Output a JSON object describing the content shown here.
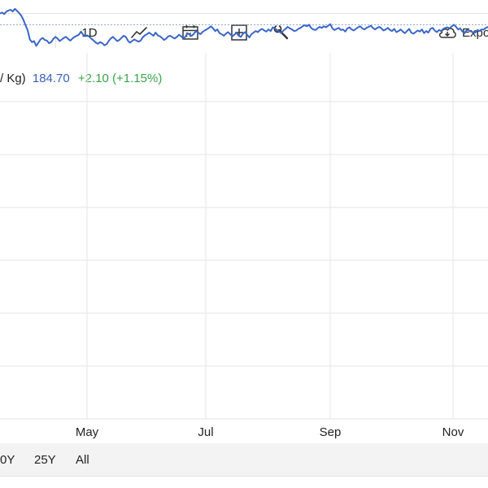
{
  "toolbar": {
    "period_label": "1D",
    "line_icon": "line-chart-icon",
    "calendar_icon": "calendar-icon",
    "plus_icon": "plus-box-icon",
    "wrench_icon": "wrench-icon",
    "export_icon": "cloud-download-icon",
    "export_label": "Expo"
  },
  "quote": {
    "unit": "/ Kg)",
    "price": "184.70",
    "change": "+2.10 (+1.15%)"
  },
  "ranges": [
    "0Y",
    "25Y",
    "All"
  ],
  "colors": {
    "line": "#3a66c6",
    "price": "#3a5fb8",
    "change": "#3aa34a",
    "reference": "#8fa3c4",
    "grid": "#e6e6e6"
  },
  "chart_data": {
    "type": "line",
    "x_tick_labels": [
      "May",
      "Jul",
      "Sep",
      "Nov"
    ],
    "ylim": [
      0,
      100
    ],
    "reference_level": 61,
    "series": [
      {
        "values": [
          82,
          84,
          81,
          86,
          88,
          89,
          86,
          91,
          87,
          83,
          78,
          70,
          60,
          50,
          33,
          28,
          30,
          21,
          27,
          33,
          36,
          32,
          31,
          26,
          28,
          34,
          38,
          35,
          30,
          33,
          36,
          38,
          34,
          31,
          35,
          38,
          40,
          42,
          48,
          42,
          39,
          41,
          38,
          34,
          31,
          27,
          25,
          28,
          26,
          22,
          24,
          30,
          35,
          38,
          34,
          30,
          32,
          36,
          40,
          38,
          31,
          27,
          30,
          33,
          31,
          29,
          31,
          37,
          41,
          43,
          46,
          43,
          40,
          46,
          41,
          39,
          36,
          32,
          35,
          39,
          40,
          37,
          35,
          38,
          42,
          39,
          35,
          38,
          45,
          42,
          40,
          44,
          49,
          46,
          43,
          47,
          50,
          52,
          55,
          58,
          54,
          49,
          52,
          45,
          43,
          40,
          44,
          47,
          43,
          39,
          42,
          46,
          40,
          38,
          44,
          47,
          42,
          37,
          43,
          46,
          49,
          47,
          51,
          53,
          50,
          48,
          52,
          49,
          56,
          54,
          51,
          48,
          45,
          50,
          53,
          57,
          54,
          52,
          49,
          50,
          53,
          55,
          58,
          60,
          58,
          61,
          55,
          52,
          51,
          54,
          57,
          55,
          58,
          56,
          59,
          62,
          54,
          51,
          53,
          55,
          51,
          52,
          48,
          54,
          56,
          52,
          50,
          53,
          56,
          58,
          54,
          52,
          55,
          57,
          59,
          55,
          52,
          55,
          57,
          54,
          50,
          52,
          55,
          51,
          49,
          53,
          47,
          49,
          52,
          48,
          45,
          49,
          53,
          46,
          44,
          47,
          50,
          48,
          52,
          45,
          49,
          46,
          53,
          55,
          50,
          47,
          51,
          49,
          53,
          55,
          56,
          54,
          58,
          61,
          57,
          52,
          54,
          48,
          45,
          51,
          50,
          48,
          47,
          46,
          51,
          49,
          52,
          52,
          55,
          57
        ]
      }
    ]
  }
}
